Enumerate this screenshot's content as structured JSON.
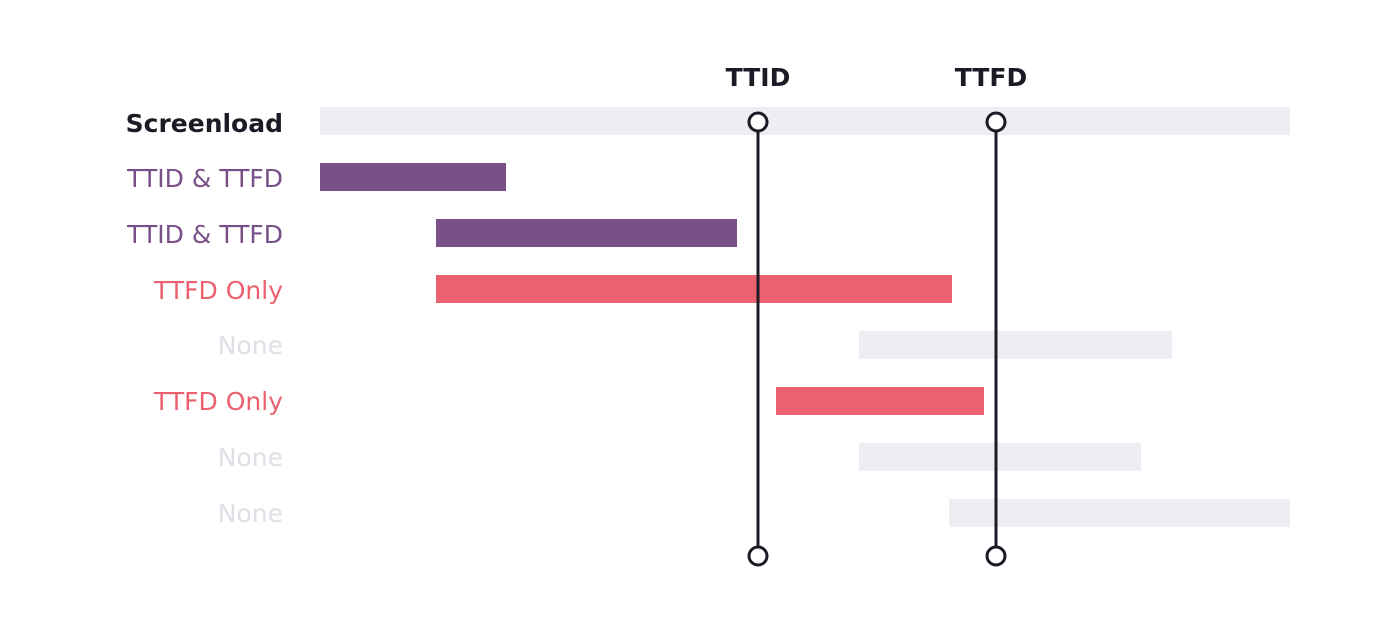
{
  "markers": [
    "TTID",
    "TTFD"
  ],
  "rows": [
    "Screenload",
    "TTID & TTFD",
    "TTID & TTFD",
    "TTFD Only",
    "None",
    "TTFD Only",
    "None",
    "None"
  ]
}
